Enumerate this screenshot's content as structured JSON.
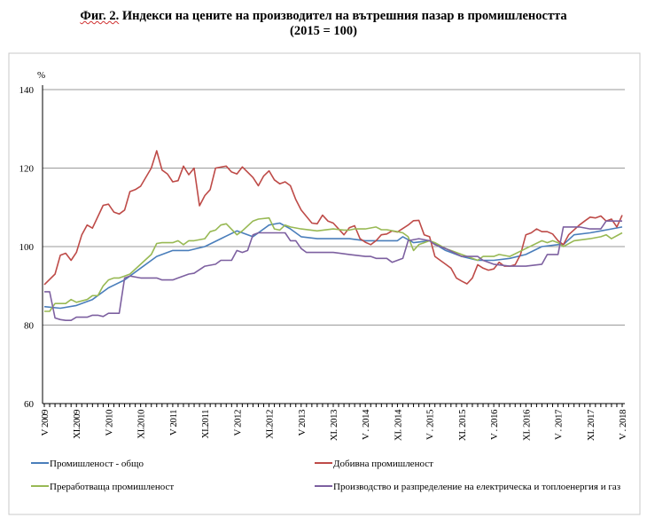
{
  "title": {
    "prefix": "Фиг. 2.",
    "text": " Индекси на цените на производител на вътрешния пазар в промишлеността",
    "subtitle": "(2015 = 100)"
  },
  "chart_data": {
    "type": "line",
    "title": "Фиг. 2. Индекси на цените на производител на вътрешния пазар в промишлеността (2015 = 100)",
    "ylabel": "%",
    "xlabel": "",
    "ylim": [
      60,
      140
    ],
    "yticks": [
      60,
      80,
      100,
      120,
      140
    ],
    "grid": true,
    "legend_position": "bottom",
    "x_range_months": [
      0,
      108
    ],
    "x_start": "V 2009",
    "x_end": "V 2018",
    "xtick_labels": [
      "V 2009",
      "XI.2009",
      "V 2010",
      "XI.2010",
      "V 2011",
      "XI.2011",
      "V 2012",
      "XI.2012",
      "V 2013",
      "XI. 2013",
      "V . 2014",
      "XI. 2014",
      "V . 2015",
      "XI. 2015",
      "V . 2016",
      "XI. 2016",
      "V . 2017",
      "XI. 2017",
      "V . 2018"
    ],
    "series_note": "points are [month index from V 2009, index value]",
    "series": [
      {
        "name": "Промишленост - общо",
        "color": "#4a7ebb",
        "points": [
          [
            0,
            84.7
          ],
          [
            3,
            84.3
          ],
          [
            6,
            85
          ],
          [
            9,
            86.5
          ],
          [
            12,
            89.5
          ],
          [
            15,
            91.5
          ],
          [
            18,
            94.5
          ],
          [
            21,
            97.5
          ],
          [
            24,
            99
          ],
          [
            27,
            99
          ],
          [
            30,
            100
          ],
          [
            33,
            102
          ],
          [
            36,
            104
          ],
          [
            39,
            102.5
          ],
          [
            42,
            105.5
          ],
          [
            44,
            106
          ],
          [
            46,
            104.5
          ],
          [
            48,
            102.5
          ],
          [
            51,
            102
          ],
          [
            54,
            102
          ],
          [
            57,
            102
          ],
          [
            60,
            101.5
          ],
          [
            63,
            101.5
          ],
          [
            66,
            101.5
          ],
          [
            67,
            102.5
          ],
          [
            69,
            101
          ],
          [
            72,
            101.5
          ],
          [
            75,
            99
          ],
          [
            78,
            97.5
          ],
          [
            81,
            96.5
          ],
          [
            84,
            96.5
          ],
          [
            87,
            97
          ],
          [
            90,
            98
          ],
          [
            93,
            100
          ],
          [
            96,
            100.5
          ],
          [
            97,
            100.5
          ],
          [
            99,
            103
          ],
          [
            102,
            103.5
          ],
          [
            104,
            104
          ],
          [
            106,
            104.5
          ],
          [
            108,
            105
          ]
        ]
      },
      {
        "name": "Добивна промишленост",
        "color": "#be4b48",
        "points": [
          [
            0,
            90.3
          ],
          [
            2,
            93
          ],
          [
            3,
            97.8
          ],
          [
            4,
            98.3
          ],
          [
            5,
            96.5
          ],
          [
            6,
            98.5
          ],
          [
            7,
            103
          ],
          [
            8,
            105.5
          ],
          [
            9,
            104.7
          ],
          [
            11,
            110.5
          ],
          [
            12,
            110.8
          ],
          [
            13,
            108.8
          ],
          [
            14,
            108.3
          ],
          [
            15,
            109.3
          ],
          [
            16,
            114
          ],
          [
            17,
            114.5
          ],
          [
            18,
            115.4
          ],
          [
            20,
            120
          ],
          [
            21,
            124.4
          ],
          [
            22,
            119.5
          ],
          [
            23,
            118.5
          ],
          [
            24,
            116.5
          ],
          [
            25,
            116.8
          ],
          [
            26,
            120.5
          ],
          [
            27,
            118.3
          ],
          [
            28,
            120
          ],
          [
            29,
            110.4
          ],
          [
            30,
            113
          ],
          [
            31,
            114.5
          ],
          [
            32,
            120
          ],
          [
            34,
            120.5
          ],
          [
            35,
            119
          ],
          [
            36,
            118.5
          ],
          [
            37,
            120.3
          ],
          [
            39,
            117.6
          ],
          [
            40,
            115.5
          ],
          [
            41,
            118
          ],
          [
            42,
            119.3
          ],
          [
            43,
            117
          ],
          [
            44,
            116
          ],
          [
            45,
            116.5
          ],
          [
            46,
            115.5
          ],
          [
            47,
            112
          ],
          [
            48,
            109.3
          ],
          [
            50,
            106
          ],
          [
            51,
            105.8
          ],
          [
            52,
            108
          ],
          [
            53,
            106.5
          ],
          [
            54,
            106
          ],
          [
            55,
            104.5
          ],
          [
            56,
            103
          ],
          [
            57,
            104.8
          ],
          [
            58,
            105.3
          ],
          [
            59,
            102
          ],
          [
            60,
            101.1
          ],
          [
            61,
            100.5
          ],
          [
            62,
            101.5
          ],
          [
            63,
            103
          ],
          [
            64,
            103.2
          ],
          [
            65,
            104
          ],
          [
            66,
            103.7
          ],
          [
            68,
            105.5
          ],
          [
            69,
            106.6
          ],
          [
            70,
            106.7
          ],
          [
            71,
            103
          ],
          [
            72,
            102.5
          ],
          [
            73,
            97.5
          ],
          [
            74,
            96.5
          ],
          [
            75,
            95.5
          ],
          [
            76,
            94.5
          ],
          [
            77,
            92
          ],
          [
            78,
            91.2
          ],
          [
            79,
            90.5
          ],
          [
            80,
            92
          ],
          [
            81,
            95.4
          ],
          [
            82,
            94.5
          ],
          [
            83,
            94
          ],
          [
            84,
            94.3
          ],
          [
            85,
            96
          ],
          [
            86,
            95
          ],
          [
            87,
            95
          ],
          [
            88,
            95.4
          ],
          [
            89,
            98
          ],
          [
            90,
            103
          ],
          [
            91,
            103.5
          ],
          [
            92,
            104.5
          ],
          [
            93,
            103.8
          ],
          [
            94,
            103.8
          ],
          [
            95,
            103.2
          ],
          [
            96,
            101.5
          ],
          [
            97,
            100.5
          ],
          [
            98,
            103
          ],
          [
            100,
            105.5
          ],
          [
            101,
            106.5
          ],
          [
            102,
            107.5
          ],
          [
            103,
            107.3
          ],
          [
            104,
            107.8
          ],
          [
            105,
            106.5
          ],
          [
            106,
            107
          ],
          [
            107,
            105
          ],
          [
            108,
            108
          ]
        ]
      },
      {
        "name": "Преработваща промишленост",
        "color": "#98b954",
        "points": [
          [
            0,
            83.5
          ],
          [
            1,
            83.5
          ],
          [
            2,
            85.5
          ],
          [
            4,
            85.5
          ],
          [
            5,
            86.5
          ],
          [
            6,
            85.8
          ],
          [
            8,
            86.5
          ],
          [
            9,
            87.5
          ],
          [
            10,
            87.5
          ],
          [
            11,
            90
          ],
          [
            12,
            91.5
          ],
          [
            13,
            92
          ],
          [
            14,
            92
          ],
          [
            15,
            92.5
          ],
          [
            16,
            93
          ],
          [
            18,
            95.5
          ],
          [
            20,
            98
          ],
          [
            21,
            100.8
          ],
          [
            22,
            101
          ],
          [
            24,
            101
          ],
          [
            25,
            101.5
          ],
          [
            26,
            100.5
          ],
          [
            27,
            101.5
          ],
          [
            28,
            101.5
          ],
          [
            30,
            102
          ],
          [
            31,
            103.8
          ],
          [
            32,
            104.2
          ],
          [
            33,
            105.5
          ],
          [
            34,
            105.8
          ],
          [
            36,
            103
          ],
          [
            37,
            104
          ],
          [
            39,
            106.5
          ],
          [
            40,
            107
          ],
          [
            42,
            107.3
          ],
          [
            43,
            104.5
          ],
          [
            44,
            104.2
          ],
          [
            45,
            105.5
          ],
          [
            46,
            105
          ],
          [
            48,
            104.5
          ],
          [
            51,
            104
          ],
          [
            54,
            104.5
          ],
          [
            56,
            104.2
          ],
          [
            57,
            104.2
          ],
          [
            58,
            104.5
          ],
          [
            60,
            104.5
          ],
          [
            62,
            105
          ],
          [
            63,
            104.3
          ],
          [
            64,
            104.3
          ],
          [
            66,
            103.8
          ],
          [
            67,
            103.5
          ],
          [
            68,
            102.5
          ],
          [
            69,
            99
          ],
          [
            70,
            100.5
          ],
          [
            71,
            101
          ],
          [
            72,
            101.5
          ],
          [
            73,
            101
          ],
          [
            75,
            99.5
          ],
          [
            78,
            98
          ],
          [
            80,
            97
          ],
          [
            81,
            96.5
          ],
          [
            82,
            97.5
          ],
          [
            84,
            97.5
          ],
          [
            85,
            98
          ],
          [
            87,
            97.5
          ],
          [
            90,
            99.5
          ],
          [
            93,
            101.5
          ],
          [
            94,
            101
          ],
          [
            95,
            101.5
          ],
          [
            96,
            101
          ],
          [
            97,
            100
          ],
          [
            99,
            101.5
          ],
          [
            102,
            102
          ],
          [
            104,
            102.5
          ],
          [
            105,
            103
          ],
          [
            106,
            102
          ],
          [
            108,
            103.5
          ]
        ]
      },
      {
        "name": "Производство и разпределение на електрическа и топлоенергия и газ",
        "color": "#7d60a0",
        "points": [
          [
            0,
            88.5
          ],
          [
            1,
            88.5
          ],
          [
            2,
            81.8
          ],
          [
            3,
            81.4
          ],
          [
            4,
            81.2
          ],
          [
            5,
            81.2
          ],
          [
            6,
            82
          ],
          [
            8,
            82
          ],
          [
            9,
            82.5
          ],
          [
            10,
            82.5
          ],
          [
            11,
            82.2
          ],
          [
            12,
            83
          ],
          [
            13,
            83
          ],
          [
            14,
            83
          ],
          [
            15,
            92
          ],
          [
            16,
            92.5
          ],
          [
            18,
            92
          ],
          [
            21,
            92
          ],
          [
            22,
            91.5
          ],
          [
            24,
            91.5
          ],
          [
            25,
            92
          ],
          [
            27,
            93
          ],
          [
            28,
            93.2
          ],
          [
            30,
            95
          ],
          [
            32,
            95.5
          ],
          [
            33,
            96.5
          ],
          [
            35,
            96.5
          ],
          [
            36,
            99
          ],
          [
            37,
            98.5
          ],
          [
            38,
            99
          ],
          [
            39,
            103
          ],
          [
            40,
            103.5
          ],
          [
            42,
            103.5
          ],
          [
            45,
            103.5
          ],
          [
            46,
            101.5
          ],
          [
            47,
            101.5
          ],
          [
            48,
            99.5
          ],
          [
            49,
            98.5
          ],
          [
            54,
            98.5
          ],
          [
            57,
            98
          ],
          [
            60,
            97.5
          ],
          [
            61,
            97.5
          ],
          [
            62,
            97
          ],
          [
            64,
            97
          ],
          [
            65,
            96
          ],
          [
            66,
            96.5
          ],
          [
            67,
            97
          ],
          [
            68,
            101.5
          ],
          [
            70,
            102
          ],
          [
            72,
            101.5
          ],
          [
            73,
            100.5
          ],
          [
            75,
            99.5
          ],
          [
            78,
            97.5
          ],
          [
            81,
            97.5
          ],
          [
            82,
            96.5
          ],
          [
            84,
            95.5
          ],
          [
            87,
            95
          ],
          [
            90,
            95
          ],
          [
            93,
            95.5
          ],
          [
            94,
            98
          ],
          [
            96,
            98
          ],
          [
            97,
            105
          ],
          [
            100,
            105
          ],
          [
            102,
            104.5
          ],
          [
            104,
            104.5
          ],
          [
            105,
            106.5
          ],
          [
            108,
            106.5
          ]
        ]
      }
    ]
  }
}
